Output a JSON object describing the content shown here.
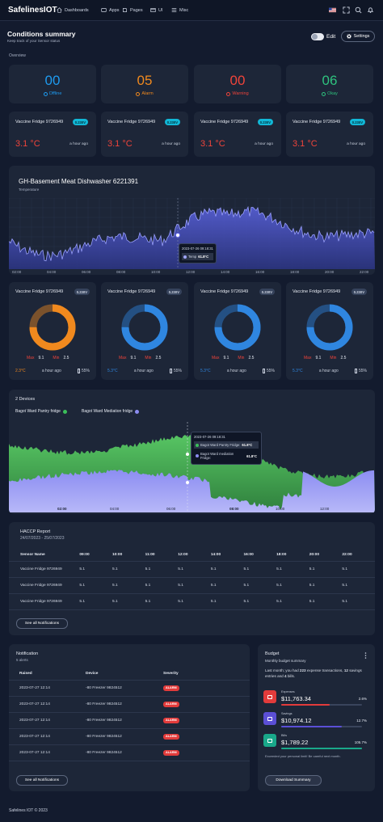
{
  "brand": "SafelinesIOT",
  "nav": [
    "Dashboards",
    "Apps",
    "Pages",
    "UI",
    "Misc"
  ],
  "header": {
    "title": "Conditions summary",
    "subtitle": "Keep track of your Sensor status",
    "edit_label": "Edit",
    "settings_label": "Settings"
  },
  "overview_label": "Overview",
  "stats": [
    {
      "value": "00",
      "label": "Offline",
      "color": "#1e9bf0"
    },
    {
      "value": "05",
      "label": "Alarm",
      "color": "#f0891e"
    },
    {
      "value": "00",
      "label": "Warning",
      "color": "#f0443a"
    },
    {
      "value": "06",
      "label": "Okay",
      "color": "#2ec27e"
    }
  ],
  "fridges": [
    {
      "name": "Vaccine Fridge 9726949",
      "badge": "0.230V",
      "temp": "3.1 °C",
      "ago": "a hour ago"
    },
    {
      "name": "Vaccine Fridge 9726949",
      "badge": "0.230V",
      "temp": "3.1 °C",
      "ago": "a hour ago"
    },
    {
      "name": "Vaccine Fridge 9726949",
      "badge": "0.230V",
      "temp": "3.1 °C",
      "ago": "a hour ago"
    },
    {
      "name": "Vaccine Fridge 9726949",
      "badge": "0.230V",
      "temp": "3.1 °C",
      "ago": "a hour ago"
    }
  ],
  "temp_chart": {
    "title": "GH-Basement Meat Dishwasher 6221391",
    "subtitle": "Temperature",
    "x_ticks": [
      "02:00",
      "04:00",
      "06:00",
      "08:00",
      "10:00",
      "12:00",
      "14:00",
      "16:00",
      "18:00",
      "20:00",
      "22:00"
    ],
    "tooltip_time": "2023-07-26 09:18:31",
    "tooltip_label": "Temp",
    "tooltip_value": "61.8°C"
  },
  "donuts": [
    {
      "name": "Vaccine Fridge 9726949",
      "badge": "0.230V",
      "max_label": "Max",
      "max": "9.1",
      "min_label": "Min",
      "min": "2.5",
      "temp": "2.3°C",
      "ago": "a hour ago",
      "battery": "55%",
      "color": "#f0891e",
      "fill": 0.75
    },
    {
      "name": "Vaccine Fridge 9726949",
      "badge": "0.230V",
      "max_label": "Max",
      "max": "9.1",
      "min_label": "Min",
      "min": "2.5",
      "temp": "5.3°C",
      "ago": "a hour ago",
      "battery": "55%",
      "color": "#2f86e0",
      "fill": 0.75
    },
    {
      "name": "Vaccine Fridge 9726949",
      "badge": "0.230V",
      "max_label": "Max",
      "max": "9.1",
      "min_label": "Min",
      "min": "2.5",
      "temp": "5.3°C",
      "ago": "a hour ago",
      "battery": "55%",
      "color": "#2f86e0",
      "fill": 0.75
    },
    {
      "name": "Vaccine Fridge 9726949",
      "badge": "0.230V",
      "max_label": "Max",
      "max": "9.1",
      "min_label": "Min",
      "min": "2.5",
      "temp": "5.3°C",
      "ago": "a hour ago",
      "battery": "55%",
      "color": "#2f86e0",
      "fill": 0.75
    }
  ],
  "devices_chart": {
    "title": "2 Devices",
    "legend": [
      {
        "name": "Bagot Ward Pantry fridge",
        "color": "#3bbf5a"
      },
      {
        "name": "Bagot Ward Mediation fridge",
        "color": "#8b8cf0"
      }
    ],
    "x_ticks": [
      "02:00",
      "04:00",
      "06:00",
      "08:00",
      "10:00",
      "12:00"
    ],
    "tooltip_time": "2023-07-26 09:18:31",
    "tooltip_rows": [
      {
        "label": "Bagot Ward Pantry Fridge:",
        "value": "61.8°C"
      },
      {
        "label": "Bagot Ward mediation Fridge:",
        "value": "61.8°C"
      }
    ]
  },
  "haccp": {
    "title": "HACCP Report",
    "date_range": "24/07/2023 - 25/07/2023",
    "columns": [
      "Sensor Name",
      "09:00",
      "10:00",
      "11:00",
      "12:00",
      "14:00",
      "16:00",
      "18:00",
      "20:00",
      "22:00"
    ],
    "rows": [
      [
        "Vaccine Fridge 9726949",
        "5.1",
        "5.1",
        "5.1",
        "5.1",
        "5.1",
        "5.1",
        "5.1",
        "5.1",
        "5.1"
      ],
      [
        "Vaccine Fridge 9726949",
        "5.1",
        "5.1",
        "5.1",
        "5.1",
        "5.1",
        "5.1",
        "5.1",
        "5.1",
        "5.1"
      ],
      [
        "Vaccine Fridge 9726949",
        "5.1",
        "5.1",
        "5.1",
        "5.1",
        "5.1",
        "5.1",
        "5.1",
        "5.1",
        "5.1"
      ]
    ],
    "button": "See all Notifications"
  },
  "notification": {
    "title": "Notification",
    "subtitle": "5 alerts",
    "columns": [
      "Raised",
      "Device",
      "Severity"
    ],
    "rows": [
      {
        "raised": "2023-07-27 12:14",
        "device": "-80 Freezer 9824512",
        "severity": "ALARM"
      },
      {
        "raised": "2023-07-27 12:14",
        "device": "-80 Freezer 9824512",
        "severity": "ALARM"
      },
      {
        "raised": "2023-07-27 12:14",
        "device": "-80 Freezer 9824512",
        "severity": "ALARM"
      },
      {
        "raised": "2023-07-27 12:14",
        "device": "-80 Freezer 9824512",
        "severity": "ALARM"
      },
      {
        "raised": "2023-07-27 12:14",
        "device": "-80 Freezer 9824512",
        "severity": "ALARM"
      }
    ],
    "button": "See all Notifications"
  },
  "budget": {
    "title": "Budget",
    "subtitle": "Monthly budget summary",
    "desc_1": "Last month; you had ",
    "desc_2": "223",
    "desc_3": " expense transactions, ",
    "desc_4": "12",
    "desc_5": " savings entries and ",
    "desc_6": "4",
    "desc_7": " bills.",
    "items": [
      {
        "label": "Expenses",
        "value": "$11,763.34",
        "percent": "2.6%",
        "color": "#e23b3b",
        "fill": 0.6
      },
      {
        "label": "Savings",
        "value": "$10,974.12",
        "percent": "12.7%",
        "color": "#5b4fd6",
        "fill": 0.75
      },
      {
        "label": "Bills",
        "value": "$1,789.22",
        "percent": "105.7%",
        "color": "#19a88a",
        "fill": 1.0
      }
    ],
    "note": "Exceeded your personal limit! Be careful next month.",
    "button": "Download Summary"
  },
  "footer": "Safelines IOT © 2023"
}
